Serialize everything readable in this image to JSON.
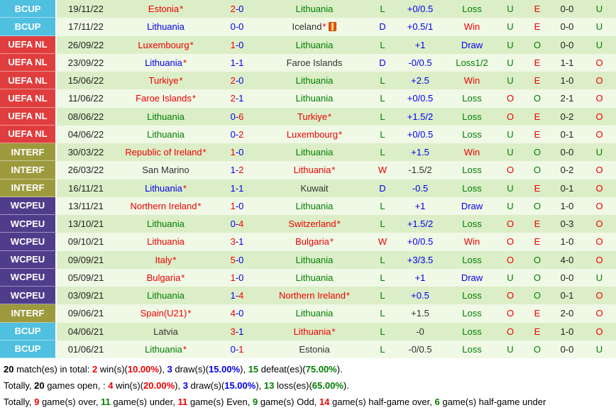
{
  "palette": {
    "red": "#ee0000",
    "green": "#008000",
    "blue": "#0000ee",
    "black": "#333333",
    "badge_text": "#ffffff",
    "row_odd_bg": "#dceec7",
    "row_even_bg": "#f0f8e6",
    "icon_orange": "#e8500f",
    "badge_bg": {
      "BCUP": "#50c0e0",
      "UEFA NL": "#e03e3e",
      "INTERF": "#9d9a3e",
      "WCPEU": "#4f3d8c"
    }
  },
  "table": {
    "rows": [
      {
        "league": "BCUP",
        "date": "19/11/22",
        "home": "Estonia",
        "home_color": "red",
        "home_star": true,
        "home_icon": false,
        "score_h": "2",
        "score_h_color": "red",
        "score_a": "0",
        "score_a_color": "blue",
        "away": "Lithuania",
        "away_color": "green",
        "away_star": false,
        "away_icon": false,
        "letter": "L",
        "letter_color": "green",
        "hcap": "+0/0.5",
        "hcap_color": "blue",
        "result": "Loss",
        "result_color": "green",
        "ou1": "U",
        "ou1_color": "green",
        "eo": "E",
        "eo_color": "red",
        "ht": "0-0",
        "ou2": "U",
        "ou2_color": "green"
      },
      {
        "league": "BCUP",
        "date": "17/11/22",
        "home": "Lithuania",
        "home_color": "blue",
        "home_star": false,
        "home_icon": false,
        "score_h": "0",
        "score_h_color": "blue",
        "score_a": "0",
        "score_a_color": "blue",
        "away": "Iceland",
        "away_color": "black",
        "away_star": true,
        "away_icon": true,
        "letter": "D",
        "letter_color": "blue",
        "hcap": "+0.5/1",
        "hcap_color": "blue",
        "result": "Win",
        "result_color": "red",
        "ou1": "U",
        "ou1_color": "green",
        "eo": "E",
        "eo_color": "red",
        "ht": "0-0",
        "ou2": "U",
        "ou2_color": "green"
      },
      {
        "league": "UEFA NL",
        "date": "26/09/22",
        "home": "Luxembourg",
        "home_color": "red",
        "home_star": true,
        "home_icon": false,
        "score_h": "1",
        "score_h_color": "red",
        "score_a": "0",
        "score_a_color": "blue",
        "away": "Lithuania",
        "away_color": "green",
        "away_star": false,
        "away_icon": false,
        "letter": "L",
        "letter_color": "green",
        "hcap": "+1",
        "hcap_color": "blue",
        "result": "Draw",
        "result_color": "blue",
        "ou1": "U",
        "ou1_color": "green",
        "eo": "O",
        "eo_color": "green",
        "ht": "0-0",
        "ou2": "U",
        "ou2_color": "green"
      },
      {
        "league": "UEFA NL",
        "date": "23/09/22",
        "home": "Lithuania",
        "home_color": "blue",
        "home_star": true,
        "home_icon": false,
        "score_h": "1",
        "score_h_color": "blue",
        "score_a": "1",
        "score_a_color": "blue",
        "away": "Faroe Islands",
        "away_color": "black",
        "away_star": false,
        "away_icon": false,
        "letter": "D",
        "letter_color": "blue",
        "hcap": "-0/0.5",
        "hcap_color": "blue",
        "result": "Loss1/2",
        "result_color": "green",
        "ou1": "U",
        "ou1_color": "green",
        "eo": "E",
        "eo_color": "red",
        "ht": "1-1",
        "ou2": "O",
        "ou2_color": "red"
      },
      {
        "league": "UEFA NL",
        "date": "15/06/22",
        "home": "Turkiye",
        "home_color": "red",
        "home_star": true,
        "home_icon": false,
        "score_h": "2",
        "score_h_color": "red",
        "score_a": "0",
        "score_a_color": "blue",
        "away": "Lithuania",
        "away_color": "green",
        "away_star": false,
        "away_icon": false,
        "letter": "L",
        "letter_color": "green",
        "hcap": "+2.5",
        "hcap_color": "blue",
        "result": "Win",
        "result_color": "red",
        "ou1": "U",
        "ou1_color": "green",
        "eo": "E",
        "eo_color": "red",
        "ht": "1-0",
        "ou2": "O",
        "ou2_color": "red"
      },
      {
        "league": "UEFA NL",
        "date": "11/06/22",
        "home": "Faroe Islands",
        "home_color": "red",
        "home_star": true,
        "home_icon": false,
        "score_h": "2",
        "score_h_color": "red",
        "score_a": "1",
        "score_a_color": "blue",
        "away": "Lithuania",
        "away_color": "green",
        "away_star": false,
        "away_icon": false,
        "letter": "L",
        "letter_color": "green",
        "hcap": "+0/0.5",
        "hcap_color": "blue",
        "result": "Loss",
        "result_color": "green",
        "ou1": "O",
        "ou1_color": "red",
        "eo": "O",
        "eo_color": "green",
        "ht": "2-1",
        "ou2": "O",
        "ou2_color": "red"
      },
      {
        "league": "UEFA NL",
        "date": "08/06/22",
        "home": "Lithuania",
        "home_color": "green",
        "home_star": false,
        "home_icon": false,
        "score_h": "0",
        "score_h_color": "blue",
        "score_a": "6",
        "score_a_color": "red",
        "away": "Turkiye",
        "away_color": "red",
        "away_star": true,
        "away_icon": false,
        "letter": "L",
        "letter_color": "green",
        "hcap": "+1.5/2",
        "hcap_color": "blue",
        "result": "Loss",
        "result_color": "green",
        "ou1": "O",
        "ou1_color": "red",
        "eo": "E",
        "eo_color": "red",
        "ht": "0-2",
        "ou2": "O",
        "ou2_color": "red"
      },
      {
        "league": "UEFA NL",
        "date": "04/06/22",
        "home": "Lithuania",
        "home_color": "green",
        "home_star": false,
        "home_icon": false,
        "score_h": "0",
        "score_h_color": "blue",
        "score_a": "2",
        "score_a_color": "red",
        "away": "Luxembourg",
        "away_color": "red",
        "away_star": true,
        "away_icon": false,
        "letter": "L",
        "letter_color": "green",
        "hcap": "+0/0.5",
        "hcap_color": "blue",
        "result": "Loss",
        "result_color": "green",
        "ou1": "U",
        "ou1_color": "green",
        "eo": "E",
        "eo_color": "red",
        "ht": "0-1",
        "ou2": "O",
        "ou2_color": "red"
      },
      {
        "league": "INTERF",
        "date": "30/03/22",
        "home": "Republic of Ireland",
        "home_color": "red",
        "home_star": true,
        "home_icon": false,
        "score_h": "1",
        "score_h_color": "red",
        "score_a": "0",
        "score_a_color": "blue",
        "away": "Lithuania",
        "away_color": "green",
        "away_star": false,
        "away_icon": false,
        "letter": "L",
        "letter_color": "green",
        "hcap": "+1.5",
        "hcap_color": "blue",
        "result": "Win",
        "result_color": "red",
        "ou1": "U",
        "ou1_color": "green",
        "eo": "O",
        "eo_color": "green",
        "ht": "0-0",
        "ou2": "U",
        "ou2_color": "green"
      },
      {
        "league": "INTERF",
        "date": "26/03/22",
        "home": "San Marino",
        "home_color": "black",
        "home_star": false,
        "home_icon": false,
        "score_h": "1",
        "score_h_color": "blue",
        "score_a": "2",
        "score_a_color": "red",
        "away": "Lithuania",
        "away_color": "red",
        "away_star": true,
        "away_icon": false,
        "letter": "W",
        "letter_color": "red",
        "hcap": "-1.5/2",
        "hcap_color": "black",
        "result": "Loss",
        "result_color": "green",
        "ou1": "O",
        "ou1_color": "red",
        "eo": "O",
        "eo_color": "green",
        "ht": "0-2",
        "ou2": "O",
        "ou2_color": "red"
      },
      {
        "league": "INTERF",
        "date": "16/11/21",
        "home": "Lithuania",
        "home_color": "blue",
        "home_star": true,
        "home_icon": false,
        "score_h": "1",
        "score_h_color": "blue",
        "score_a": "1",
        "score_a_color": "blue",
        "away": "Kuwait",
        "away_color": "black",
        "away_star": false,
        "away_icon": false,
        "letter": "D",
        "letter_color": "blue",
        "hcap": "-0.5",
        "hcap_color": "blue",
        "result": "Loss",
        "result_color": "green",
        "ou1": "U",
        "ou1_color": "green",
        "eo": "E",
        "eo_color": "red",
        "ht": "0-1",
        "ou2": "O",
        "ou2_color": "red"
      },
      {
        "league": "WCPEU",
        "date": "13/11/21",
        "home": "Northern Ireland",
        "home_color": "red",
        "home_star": true,
        "home_icon": false,
        "score_h": "1",
        "score_h_color": "red",
        "score_a": "0",
        "score_a_color": "blue",
        "away": "Lithuania",
        "away_color": "green",
        "away_star": false,
        "away_icon": false,
        "letter": "L",
        "letter_color": "green",
        "hcap": "+1",
        "hcap_color": "blue",
        "result": "Draw",
        "result_color": "blue",
        "ou1": "U",
        "ou1_color": "green",
        "eo": "O",
        "eo_color": "green",
        "ht": "1-0",
        "ou2": "O",
        "ou2_color": "red"
      },
      {
        "league": "WCPEU",
        "date": "13/10/21",
        "home": "Lithuania",
        "home_color": "green",
        "home_star": false,
        "home_icon": false,
        "score_h": "0",
        "score_h_color": "blue",
        "score_a": "4",
        "score_a_color": "red",
        "away": "Switzerland",
        "away_color": "red",
        "away_star": true,
        "away_icon": false,
        "letter": "L",
        "letter_color": "green",
        "hcap": "+1.5/2",
        "hcap_color": "blue",
        "result": "Loss",
        "result_color": "green",
        "ou1": "O",
        "ou1_color": "red",
        "eo": "E",
        "eo_color": "red",
        "ht": "0-3",
        "ou2": "O",
        "ou2_color": "red"
      },
      {
        "league": "WCPEU",
        "date": "09/10/21",
        "home": "Lithuania",
        "home_color": "red",
        "home_star": false,
        "home_icon": false,
        "score_h": "3",
        "score_h_color": "red",
        "score_a": "1",
        "score_a_color": "blue",
        "away": "Bulgaria",
        "away_color": "red",
        "away_star": true,
        "away_icon": false,
        "letter": "W",
        "letter_color": "red",
        "hcap": "+0/0.5",
        "hcap_color": "blue",
        "result": "Win",
        "result_color": "red",
        "ou1": "O",
        "ou1_color": "red",
        "eo": "E",
        "eo_color": "red",
        "ht": "1-0",
        "ou2": "O",
        "ou2_color": "red"
      },
      {
        "league": "WCPEU",
        "date": "09/09/21",
        "home": "Italy",
        "home_color": "red",
        "home_star": true,
        "home_icon": false,
        "score_h": "5",
        "score_h_color": "red",
        "score_a": "0",
        "score_a_color": "blue",
        "away": "Lithuania",
        "away_color": "green",
        "away_star": false,
        "away_icon": false,
        "letter": "L",
        "letter_color": "green",
        "hcap": "+3/3.5",
        "hcap_color": "blue",
        "result": "Loss",
        "result_color": "green",
        "ou1": "O",
        "ou1_color": "red",
        "eo": "O",
        "eo_color": "green",
        "ht": "4-0",
        "ou2": "O",
        "ou2_color": "red"
      },
      {
        "league": "WCPEU",
        "date": "05/09/21",
        "home": "Bulgaria",
        "home_color": "red",
        "home_star": true,
        "home_icon": false,
        "score_h": "1",
        "score_h_color": "red",
        "score_a": "0",
        "score_a_color": "blue",
        "away": "Lithuania",
        "away_color": "green",
        "away_star": false,
        "away_icon": false,
        "letter": "L",
        "letter_color": "green",
        "hcap": "+1",
        "hcap_color": "blue",
        "result": "Draw",
        "result_color": "blue",
        "ou1": "U",
        "ou1_color": "green",
        "eo": "O",
        "eo_color": "green",
        "ht": "0-0",
        "ou2": "U",
        "ou2_color": "green"
      },
      {
        "league": "WCPEU",
        "date": "03/09/21",
        "home": "Lithuania",
        "home_color": "green",
        "home_star": false,
        "home_icon": false,
        "score_h": "1",
        "score_h_color": "blue",
        "score_a": "4",
        "score_a_color": "red",
        "away": "Northern Ireland",
        "away_color": "red",
        "away_star": true,
        "away_icon": false,
        "letter": "L",
        "letter_color": "green",
        "hcap": "+0.5",
        "hcap_color": "blue",
        "result": "Loss",
        "result_color": "green",
        "ou1": "O",
        "ou1_color": "red",
        "eo": "O",
        "eo_color": "green",
        "ht": "0-1",
        "ou2": "O",
        "ou2_color": "red"
      },
      {
        "league": "INTERF",
        "date": "09/06/21",
        "home": "Spain(U21)",
        "home_color": "red",
        "home_star": true,
        "home_icon": false,
        "score_h": "4",
        "score_h_color": "red",
        "score_a": "0",
        "score_a_color": "blue",
        "away": "Lithuania",
        "away_color": "green",
        "away_star": false,
        "away_icon": false,
        "letter": "L",
        "letter_color": "green",
        "hcap": "+1.5",
        "hcap_color": "black",
        "result": "Loss",
        "result_color": "green",
        "ou1": "O",
        "ou1_color": "red",
        "eo": "E",
        "eo_color": "red",
        "ht": "2-0",
        "ou2": "O",
        "ou2_color": "red"
      },
      {
        "league": "BCUP",
        "date": "04/06/21",
        "home": "Latvia",
        "home_color": "black",
        "home_star": false,
        "home_icon": false,
        "score_h": "3",
        "score_h_color": "red",
        "score_a": "1",
        "score_a_color": "blue",
        "away": "Lithuania",
        "away_color": "red",
        "away_star": true,
        "away_icon": false,
        "letter": "L",
        "letter_color": "green",
        "hcap": "-0",
        "hcap_color": "black",
        "result": "Loss",
        "result_color": "green",
        "ou1": "O",
        "ou1_color": "red",
        "eo": "E",
        "eo_color": "red",
        "ht": "1-0",
        "ou2": "O",
        "ou2_color": "red"
      },
      {
        "league": "BCUP",
        "date": "01/06/21",
        "home": "Lithuania",
        "home_color": "green",
        "home_star": true,
        "home_icon": false,
        "score_h": "0",
        "score_h_color": "blue",
        "score_a": "1",
        "score_a_color": "red",
        "away": "Estonia",
        "away_color": "black",
        "away_star": false,
        "away_icon": false,
        "letter": "L",
        "letter_color": "green",
        "hcap": "-0/0.5",
        "hcap_color": "black",
        "result": "Loss",
        "result_color": "green",
        "ou1": "U",
        "ou1_color": "green",
        "eo": "O",
        "eo_color": "green",
        "ht": "0-0",
        "ou2": "U",
        "ou2_color": "green"
      }
    ]
  },
  "summary": {
    "lines": [
      {
        "segments": [
          {
            "t": "20",
            "b": true
          },
          {
            "t": " match(es) in total: "
          },
          {
            "t": "2",
            "c": "red",
            "b": true
          },
          {
            "t": " win(s)("
          },
          {
            "t": "10.00%",
            "c": "red",
            "b": true
          },
          {
            "t": "), "
          },
          {
            "t": "3",
            "c": "blue",
            "b": true
          },
          {
            "t": " draw(s)("
          },
          {
            "t": "15.00%",
            "c": "blue",
            "b": true
          },
          {
            "t": "), "
          },
          {
            "t": "15",
            "c": "green",
            "b": true
          },
          {
            "t": " defeat(es)("
          },
          {
            "t": "75.00%",
            "c": "green",
            "b": true
          },
          {
            "t": ")."
          }
        ]
      },
      {
        "segments": [
          {
            "t": "Totally, "
          },
          {
            "t": "20",
            "b": true
          },
          {
            "t": " games open, : "
          },
          {
            "t": "4",
            "c": "red",
            "b": true
          },
          {
            "t": " win(s)("
          },
          {
            "t": "20.00%",
            "c": "red",
            "b": true
          },
          {
            "t": "), "
          },
          {
            "t": "3",
            "c": "blue",
            "b": true
          },
          {
            "t": " draw(s)("
          },
          {
            "t": "15.00%",
            "c": "blue",
            "b": true
          },
          {
            "t": "), "
          },
          {
            "t": "13",
            "c": "green",
            "b": true
          },
          {
            "t": " loss(es)("
          },
          {
            "t": "65.00%",
            "c": "green",
            "b": true
          },
          {
            "t": ")."
          }
        ]
      },
      {
        "segments": [
          {
            "t": "Totally, "
          },
          {
            "t": "9",
            "c": "red",
            "b": true
          },
          {
            "t": " game(s) over, "
          },
          {
            "t": "11",
            "c": "green",
            "b": true
          },
          {
            "t": " game(s) under, "
          },
          {
            "t": "11",
            "c": "red",
            "b": true
          },
          {
            "t": " game(s) Even, "
          },
          {
            "t": "9",
            "c": "green",
            "b": true
          },
          {
            "t": " game(s) Odd, "
          },
          {
            "t": "14",
            "c": "red",
            "b": true
          },
          {
            "t": " game(s) half-game over, "
          },
          {
            "t": "6",
            "c": "green",
            "b": true
          },
          {
            "t": " game(s) half-game under"
          }
        ]
      }
    ]
  }
}
